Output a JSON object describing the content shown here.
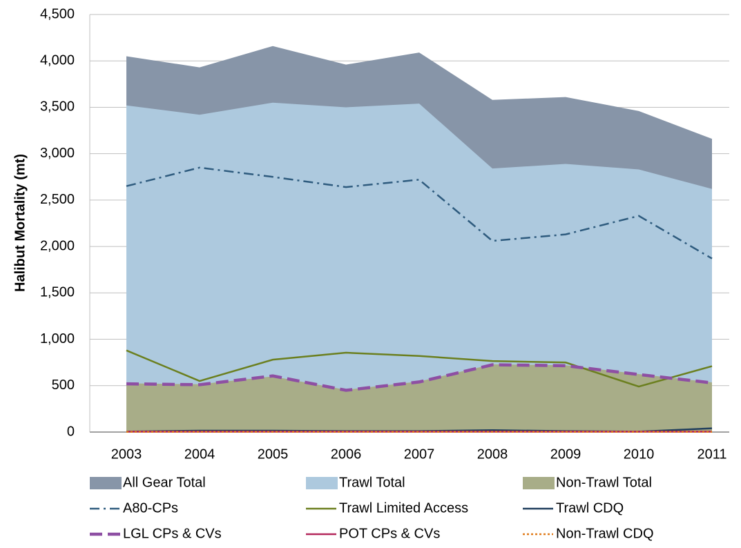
{
  "chart_data": {
    "type": "area-line",
    "y_label": "Halibut Mortality (mt)",
    "categories": [
      "2003",
      "2004",
      "2005",
      "2006",
      "2007",
      "2008",
      "2009",
      "2010",
      "2011"
    ],
    "ylim": [
      0,
      4500
    ],
    "yticks": [
      0,
      500,
      {
        "value": 1000,
        "label": "1,000"
      },
      {
        "value": 1500,
        "label": "1,500"
      },
      {
        "value": 2000,
        "label": "2,000"
      },
      {
        "value": 2500,
        "label": "2,500"
      },
      {
        "value": 3000,
        "label": "3,000"
      },
      {
        "value": 3500,
        "label": "3,500"
      },
      {
        "value": 4000,
        "label": "4,000"
      },
      {
        "value": 4500,
        "label": "4,500"
      }
    ],
    "grid": true,
    "legend": "bottom",
    "series": [
      {
        "name": "All Gear Total",
        "kind": "area",
        "color": "#8795a8",
        "values": [
          4050,
          3930,
          4160,
          3960,
          4090,
          3580,
          3610,
          3460,
          3160
        ]
      },
      {
        "name": "Trawl Total",
        "kind": "area",
        "color": "#adc9de",
        "values": [
          3520,
          3420,
          3550,
          3500,
          3540,
          2840,
          2890,
          2830,
          2620
        ]
      },
      {
        "name": "Non-Trawl Total",
        "kind": "area",
        "color": "#a8ad88",
        "values": [
          525,
          515,
          600,
          455,
          545,
          730,
          720,
          625,
          535
        ]
      },
      {
        "name": "A80-CPs",
        "kind": "line",
        "dash": "dash-dot",
        "color": "#2e5b7e",
        "values": [
          2650,
          2850,
          2750,
          2640,
          2720,
          2060,
          2130,
          2330,
          1870
        ]
      },
      {
        "name": "Trawl Limited Access",
        "kind": "line",
        "dash": "solid",
        "color": "#6b7f1e",
        "values": [
          880,
          550,
          780,
          855,
          820,
          765,
          750,
          490,
          710
        ]
      },
      {
        "name": "Trawl CDQ",
        "kind": "line",
        "dash": "solid",
        "color": "#1f3d5c",
        "values": [
          5,
          15,
          15,
          10,
          10,
          20,
          10,
          5,
          40
        ]
      },
      {
        "name": "LGL CPs & CVs",
        "kind": "line",
        "dash": "dash",
        "color": "#8e4fa3",
        "values": [
          520,
          510,
          605,
          450,
          540,
          725,
          715,
          620,
          530
        ]
      },
      {
        "name": "POT CPs & CVs",
        "kind": "line",
        "dash": "solid",
        "color": "#b3265a",
        "values": [
          5,
          5,
          5,
          5,
          5,
          5,
          5,
          5,
          5
        ]
      },
      {
        "name": "Non-Trawl CDQ",
        "kind": "line",
        "dash": "dot",
        "color": "#e07b1a",
        "values": [
          2,
          2,
          2,
          2,
          2,
          2,
          2,
          2,
          2
        ]
      }
    ]
  }
}
